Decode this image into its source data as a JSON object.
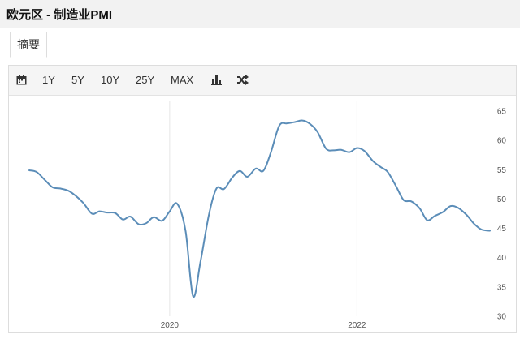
{
  "header": {
    "title": "欧元区 - 制造业PMI"
  },
  "tabs": [
    {
      "label": "摘要"
    }
  ],
  "toolbar": {
    "calendar_icon": "calendar-icon",
    "ranges": [
      "1Y",
      "5Y",
      "10Y",
      "25Y",
      "MAX"
    ],
    "bar_icon": "bar-chart-icon",
    "shuffle_icon": "shuffle-icon"
  },
  "colors": {
    "line": "#5b8db8",
    "grid": "#e6e6e6"
  },
  "chart_data": {
    "type": "line",
    "title": "",
    "xlabel": "",
    "ylabel": "",
    "ylim": [
      30,
      65
    ],
    "yticks": [
      30,
      35,
      40,
      45,
      50,
      55,
      60,
      65
    ],
    "xlim": [
      2018.5,
      2023.42
    ],
    "xticks": [
      {
        "value": 2020,
        "label": "2020"
      },
      {
        "value": 2022,
        "label": "2022"
      }
    ],
    "grid": "vertical",
    "series": [
      {
        "name": "",
        "x": [
          2018.5,
          2018.58,
          2018.67,
          2018.75,
          2018.83,
          2018.92,
          2019.0,
          2019.08,
          2019.17,
          2019.25,
          2019.33,
          2019.42,
          2019.5,
          2019.58,
          2019.67,
          2019.75,
          2019.83,
          2019.92,
          2020.0,
          2020.08,
          2020.17,
          2020.25,
          2020.33,
          2020.42,
          2020.5,
          2020.58,
          2020.67,
          2020.75,
          2020.83,
          2020.92,
          2021.0,
          2021.08,
          2021.17,
          2021.25,
          2021.33,
          2021.42,
          2021.5,
          2021.58,
          2021.67,
          2021.75,
          2021.83,
          2021.92,
          2022.0,
          2022.08,
          2022.17,
          2022.25,
          2022.33,
          2022.42,
          2022.5,
          2022.58,
          2022.67,
          2022.75,
          2022.83,
          2022.92,
          2023.0,
          2023.08,
          2023.17,
          2023.25,
          2023.33,
          2023.42
        ],
        "values": [
          54.9,
          54.6,
          53.2,
          52.0,
          51.8,
          51.4,
          50.5,
          49.3,
          47.5,
          47.9,
          47.7,
          47.6,
          46.5,
          47.0,
          45.7,
          45.9,
          46.9,
          46.3,
          47.9,
          49.2,
          44.5,
          33.4,
          39.4,
          47.4,
          51.8,
          51.7,
          53.7,
          54.8,
          53.8,
          55.2,
          54.8,
          57.9,
          62.5,
          62.9,
          63.1,
          63.4,
          62.8,
          61.4,
          58.6,
          58.3,
          58.4,
          58.0,
          58.7,
          58.2,
          56.5,
          55.5,
          54.6,
          52.1,
          49.8,
          49.6,
          48.4,
          46.4,
          47.1,
          47.8,
          48.8,
          48.5,
          47.3,
          45.8,
          44.8,
          44.6
        ]
      }
    ]
  }
}
